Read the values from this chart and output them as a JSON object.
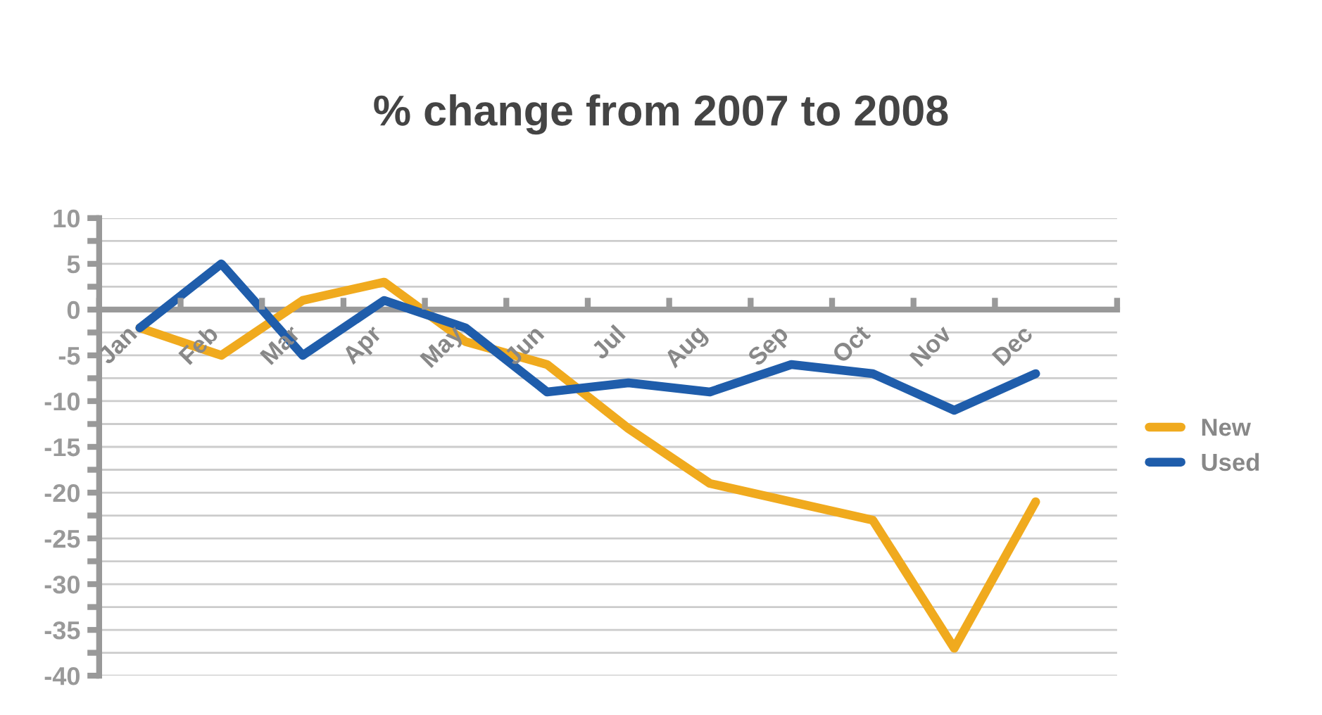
{
  "chart_data": {
    "type": "line",
    "title": "% change from 2007 to 2008",
    "categories": [
      "Jan",
      "Feb",
      "Mar",
      "Apr",
      "May",
      "Jun",
      "Jul",
      "Aug",
      "Sep",
      "Oct",
      "Nov",
      "Dec"
    ],
    "series": [
      {
        "name": "New",
        "color": "#f0aa1e",
        "values": [
          -2,
          -5,
          1,
          3,
          -3.5,
          -6,
          -13,
          -19,
          -21,
          -23,
          -37,
          -21
        ]
      },
      {
        "name": "Used",
        "color": "#1f5dab",
        "values": [
          -2,
          5,
          -5,
          1,
          -2,
          -9,
          -8,
          -9,
          -6,
          -7,
          -11,
          -7
        ]
      }
    ],
    "ylim": [
      -40,
      10
    ],
    "yticks": [
      -40,
      {
        "value": -37.5,
        "label": null
      },
      -35,
      {
        "value": -32.5,
        "label": null
      },
      -30,
      {
        "value": -27.5,
        "label": null
      },
      -25,
      {
        "value": -22.5,
        "label": null
      },
      -20,
      {
        "value": -17.5,
        "label": null
      },
      -15,
      {
        "value": -12.5,
        "label": null
      },
      -10,
      {
        "value": -7.5,
        "label": null
      },
      -5,
      {
        "value": -2.5,
        "label": null
      },
      0,
      {
        "value": 2.5,
        "label": null
      },
      5,
      {
        "value": 7.5,
        "label": null
      },
      10
    ],
    "grid": "y",
    "legend": "right",
    "marker": "none",
    "line_style": "solid"
  }
}
